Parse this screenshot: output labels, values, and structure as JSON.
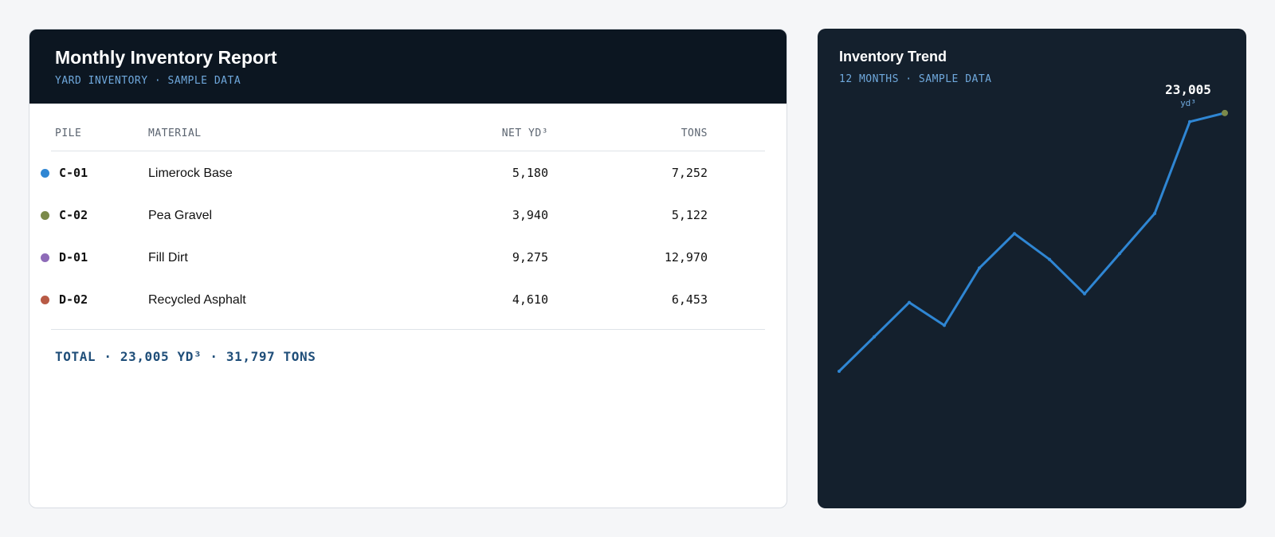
{
  "report": {
    "title": "Monthly Inventory Report",
    "subtitle": "YARD INVENTORY · SAMPLE DATA",
    "columns": {
      "pile": "PILE",
      "material": "MATERIAL",
      "net": "NET YD³",
      "tons": "TONS"
    },
    "rows": [
      {
        "pile": "C-01",
        "material": "Limerock Base",
        "net": "5,180",
        "tons": "7,252",
        "color": "#2f86d3"
      },
      {
        "pile": "C-02",
        "material": "Pea Gravel",
        "net": "3,940",
        "tons": "5,122",
        "color": "#7b8a4a"
      },
      {
        "pile": "D-01",
        "material": "Fill Dirt",
        "net": "9,275",
        "tons": "12,970",
        "color": "#8e6bb8"
      },
      {
        "pile": "D-02",
        "material": "Recycled Asphalt",
        "net": "4,610",
        "tons": "6,453",
        "color": "#b85a45"
      }
    ],
    "total": "TOTAL · 23,005 YD³ · 31,797 TONS"
  },
  "trend": {
    "title": "Inventory Trend",
    "subtitle": "12 MONTHS · SAMPLE DATA",
    "latest_value": "23,005",
    "latest_unit": "yd³"
  },
  "chart_data": {
    "type": "line",
    "title": "Inventory Trend",
    "x": [
      1,
      2,
      3,
      4,
      5,
      6,
      7,
      8,
      9,
      10,
      11,
      12
    ],
    "series": [
      {
        "values": [
          14000,
          15200,
          16400,
          15600,
          17600,
          18800,
          17900,
          16700,
          18100,
          19500,
          22700,
          23005
        ]
      }
    ],
    "ylim": [
      11500,
      24000
    ],
    "grid": false,
    "colors": {
      "line": "#2f86d3",
      "last_point": "#7b8a4a"
    }
  }
}
